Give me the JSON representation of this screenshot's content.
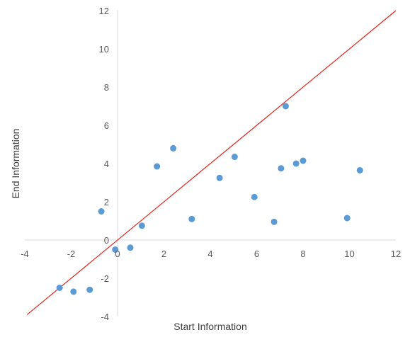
{
  "chart_data": {
    "type": "scatter",
    "title": "",
    "xlabel": "Start Information",
    "ylabel": "End Information",
    "xlim": [
      -4,
      12
    ],
    "ylim": [
      -4,
      12
    ],
    "xticks": [
      -4,
      -2,
      0,
      2,
      4,
      6,
      8,
      10,
      12
    ],
    "yticks": [
      -4,
      -2,
      0,
      2,
      4,
      6,
      8,
      10,
      12
    ],
    "grid": false,
    "legend": "none",
    "series": [
      {
        "color": "#5b9bd5",
        "points": [
          {
            "x": -2.5,
            "y": -2.5
          },
          {
            "x": -1.9,
            "y": -2.7
          },
          {
            "x": -1.2,
            "y": -2.6
          },
          {
            "x": -0.7,
            "y": 1.5
          },
          {
            "x": -0.1,
            "y": -0.5
          },
          {
            "x": 0.55,
            "y": -0.4
          },
          {
            "x": 1.05,
            "y": 0.75
          },
          {
            "x": 1.7,
            "y": 3.85
          },
          {
            "x": 2.4,
            "y": 4.8
          },
          {
            "x": 3.2,
            "y": 1.1
          },
          {
            "x": 4.4,
            "y": 3.25
          },
          {
            "x": 5.05,
            "y": 4.35
          },
          {
            "x": 5.9,
            "y": 2.25
          },
          {
            "x": 6.75,
            "y": 0.95
          },
          {
            "x": 7.05,
            "y": 3.75
          },
          {
            "x": 7.25,
            "y": 7.0
          },
          {
            "x": 7.7,
            "y": 4.0
          },
          {
            "x": 8.0,
            "y": 4.15
          },
          {
            "x": 9.9,
            "y": 1.15
          },
          {
            "x": 10.45,
            "y": 3.65
          }
        ]
      }
    ],
    "reference_line": {
      "color": "#e32119",
      "from": {
        "x": -3.9,
        "y": -3.9
      },
      "to": {
        "x": 12.0,
        "y": 12.0
      }
    }
  }
}
